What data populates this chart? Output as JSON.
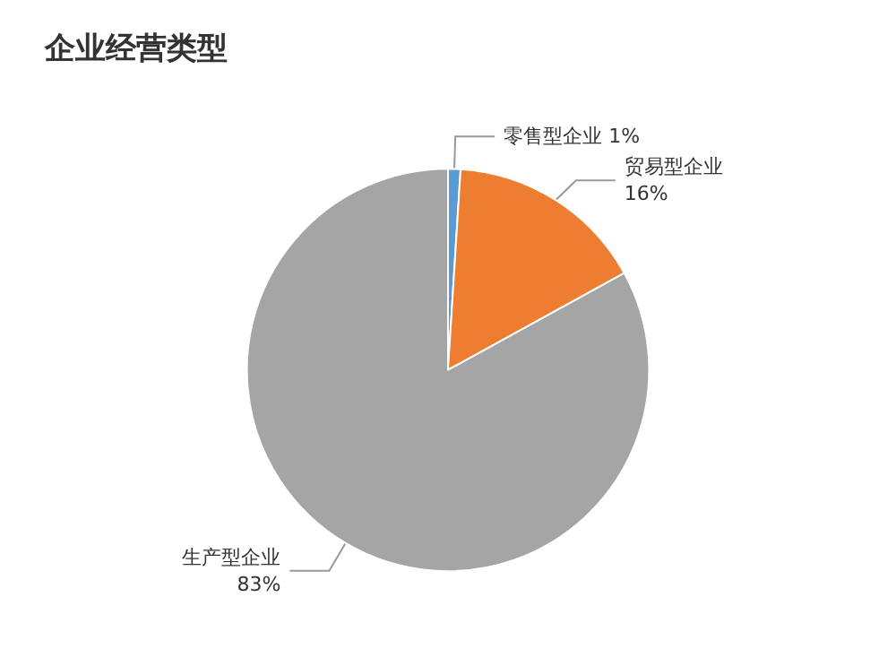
{
  "chart_data": {
    "type": "pie",
    "title": "企业经营类型",
    "categories": [
      "零售型企业",
      "贸易型企业",
      "生产型企业"
    ],
    "values": [
      1,
      16,
      83
    ],
    "value_labels": [
      "1%",
      "16%",
      "83%"
    ],
    "colors": [
      "#5b9bd5",
      "#ed7d31",
      "#a5a5a5"
    ],
    "legend": false
  }
}
